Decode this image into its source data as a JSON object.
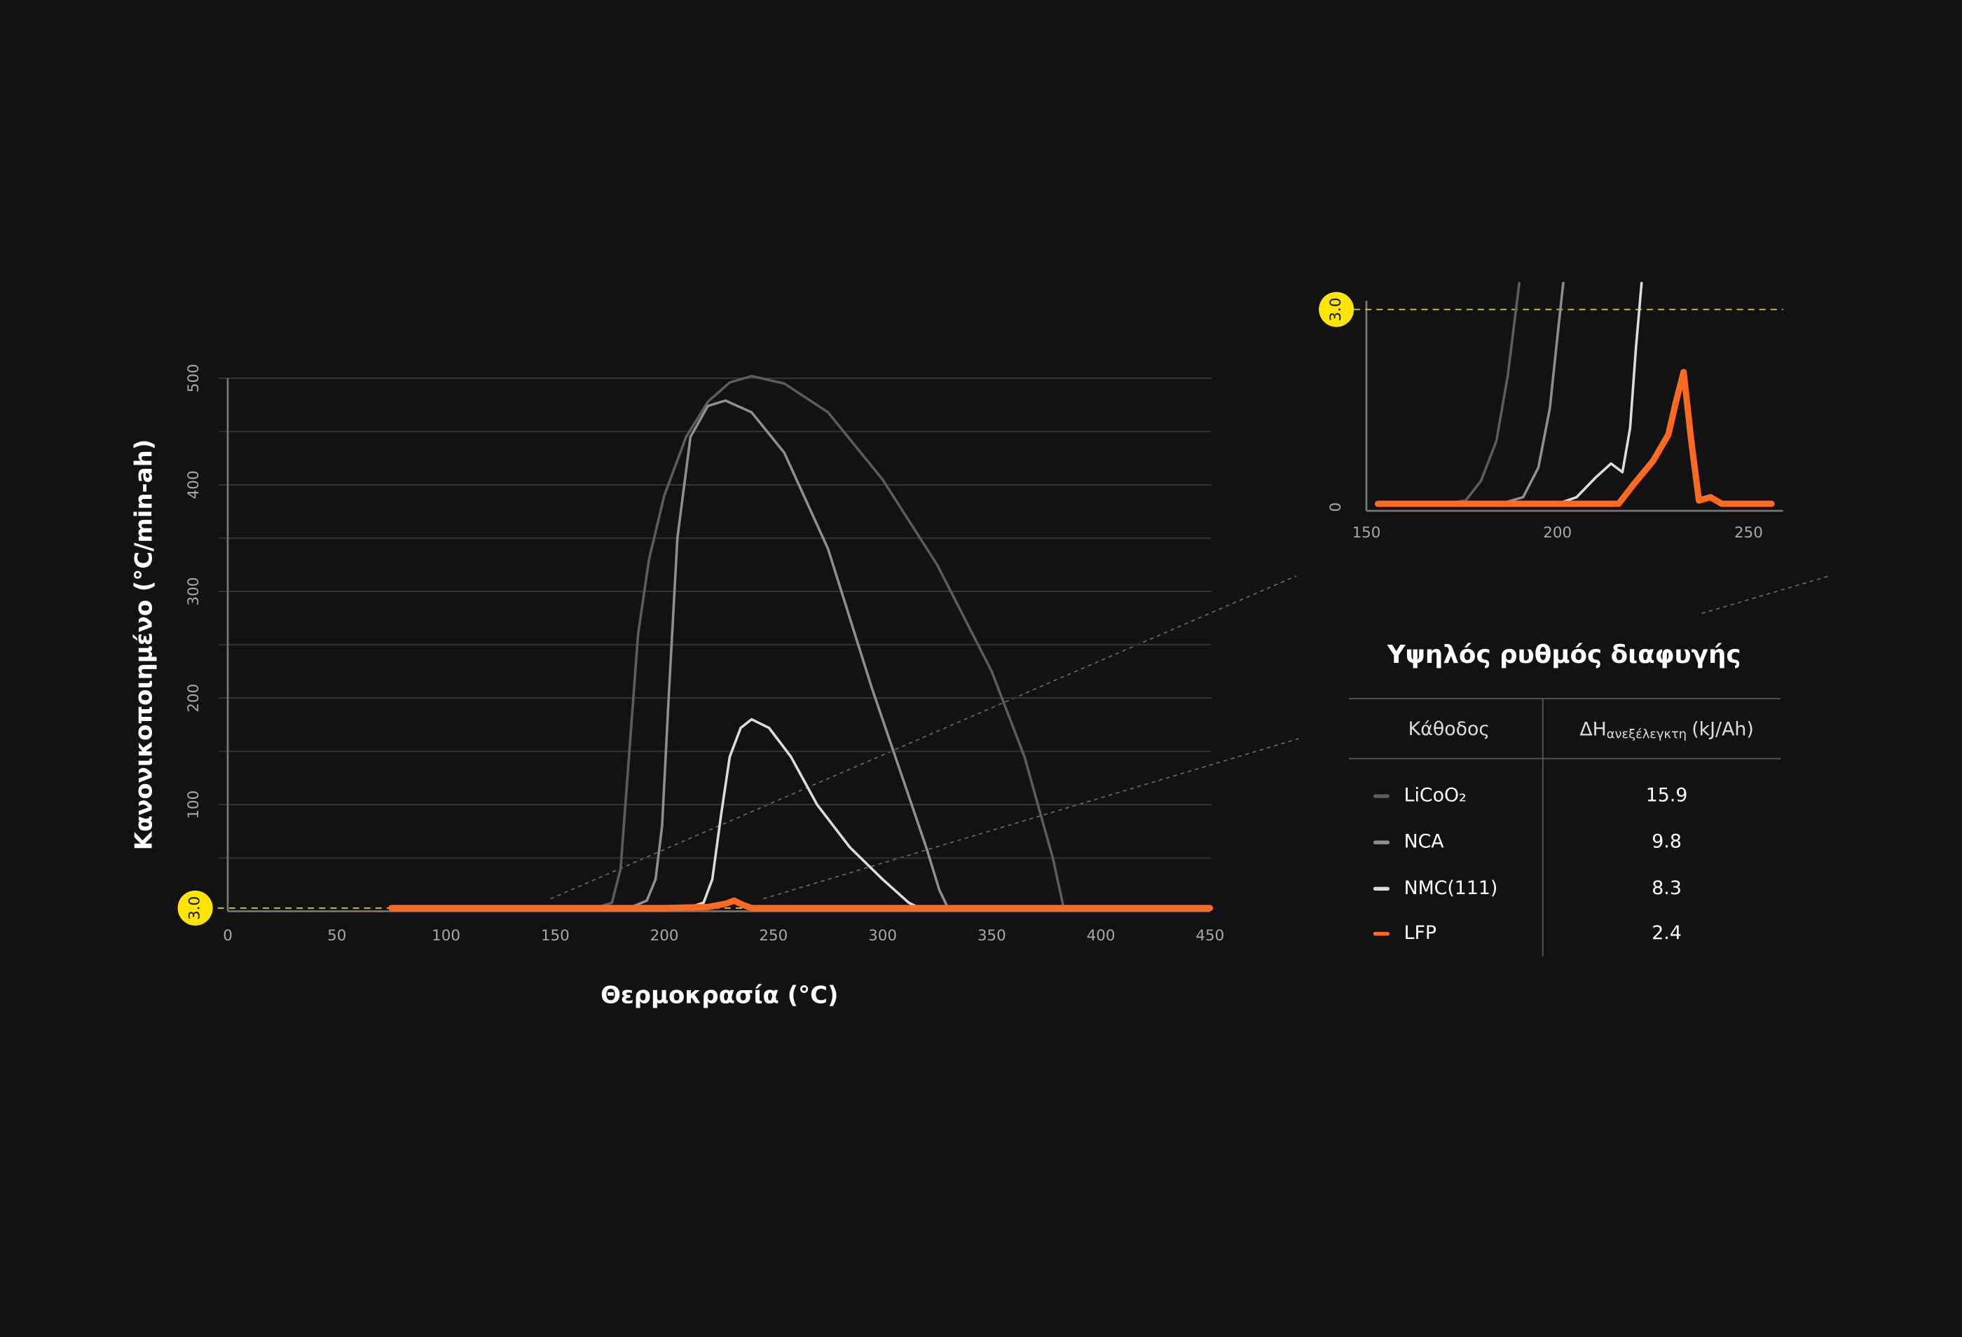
{
  "chart_data": [
    {
      "type": "line",
      "x_label": "Θερμοκρασία (°C)",
      "y_label": "Κανονικοποιημένο (°C/min-ah)",
      "xlim": [
        0,
        450
      ],
      "xticks": [
        0,
        50,
        100,
        150,
        200,
        250,
        300,
        350,
        400,
        450
      ],
      "ylim": [
        0,
        500
      ],
      "yticks": [
        100,
        200,
        300,
        400,
        500
      ],
      "minor_yticks": [
        50,
        150,
        250,
        350,
        450
      ],
      "grid": true,
      "threshold": {
        "value": 3,
        "label": "3.0"
      },
      "series": [
        {
          "name": "LiCoO₂",
          "color": "#5c5c5c",
          "width": 2,
          "x": [
            75,
            150,
            170,
            176,
            180,
            184,
            188,
            193,
            200,
            210,
            220,
            230,
            240,
            255,
            275,
            300,
            325,
            350,
            365,
            378,
            383,
            450
          ],
          "values": [
            3,
            3,
            4,
            8,
            40,
            150,
            260,
            330,
            390,
            445,
            478,
            496,
            502,
            495,
            468,
            405,
            325,
            225,
            145,
            50,
            3,
            3
          ]
        },
        {
          "name": "NCA",
          "color": "#8f8f8f",
          "width": 2,
          "x": [
            75,
            160,
            185,
            192,
            196,
            199,
            202,
            206,
            212,
            220,
            228,
            240,
            255,
            275,
            295,
            310,
            320,
            326,
            330,
            450
          ],
          "values": [
            3,
            3,
            4,
            10,
            30,
            80,
            200,
            350,
            445,
            474,
            479,
            468,
            430,
            340,
            210,
            120,
            60,
            20,
            3,
            3
          ]
        },
        {
          "name": "NMC(111)",
          "color": "#dcdcdc",
          "width": 2,
          "x": [
            75,
            200,
            212,
            218,
            222,
            226,
            230,
            235,
            240,
            248,
            258,
            270,
            285,
            300,
            312,
            317,
            450
          ],
          "values": [
            3,
            3,
            4,
            8,
            30,
            90,
            145,
            172,
            180,
            172,
            145,
            100,
            60,
            30,
            8,
            3,
            3
          ]
        },
        {
          "name": "LFP",
          "color": "#ff6a1f",
          "width": 5,
          "x": [
            75,
            200,
            220,
            228,
            232,
            236,
            240,
            450
          ],
          "values": [
            3,
            3,
            4,
            7,
            10,
            6,
            3,
            3
          ]
        }
      ]
    },
    {
      "type": "line",
      "xlim": [
        150,
        260
      ],
      "xticks": [
        150,
        200,
        250
      ],
      "ylim": [
        0,
        3.4
      ],
      "yticks": [
        0
      ],
      "grid": false,
      "threshold": {
        "value": 3,
        "label": "3.0"
      },
      "series": [
        {
          "color": "#5c5c5c",
          "width": 2,
          "x": [
            153,
            170,
            176,
            180,
            184,
            187,
            190
          ],
          "values": [
            0.05,
            0.05,
            0.1,
            0.4,
            1.0,
            2.0,
            3.4
          ]
        },
        {
          "color": "#8f8f8f",
          "width": 2,
          "x": [
            153,
            185,
            191,
            195,
            198,
            200,
            201.5
          ],
          "values": [
            0.05,
            0.05,
            0.15,
            0.6,
            1.5,
            2.6,
            3.4
          ]
        },
        {
          "color": "#dcdcdc",
          "width": 2,
          "x": [
            153,
            200,
            205,
            210,
            214,
            217,
            219,
            220.5,
            222
          ],
          "values": [
            0.05,
            0.05,
            0.15,
            0.45,
            0.66,
            0.53,
            1.2,
            2.4,
            3.4
          ]
        },
        {
          "color": "#ff6a1f",
          "width": 5,
          "x": [
            153,
            216,
            220,
            225,
            229,
            231,
            233,
            235,
            237,
            240,
            243,
            256
          ],
          "values": [
            0.05,
            0.05,
            0.35,
            0.7,
            1.1,
            1.6,
            2.05,
            1.0,
            0.1,
            0.15,
            0.05,
            0.05
          ]
        }
      ]
    }
  ],
  "table": {
    "title": "Υψηλός ρυθμός διαφυγής",
    "header": [
      "Κάθοδος",
      "ΔH",
      "ανεξέλεγκτη",
      "(kJ/Ah)"
    ],
    "rows": [
      [
        "LiCoO₂",
        "15.9"
      ],
      [
        "NCA",
        "9.8"
      ],
      [
        "NMC(111)",
        "8.3"
      ],
      [
        "LFP",
        "2.4"
      ]
    ]
  }
}
